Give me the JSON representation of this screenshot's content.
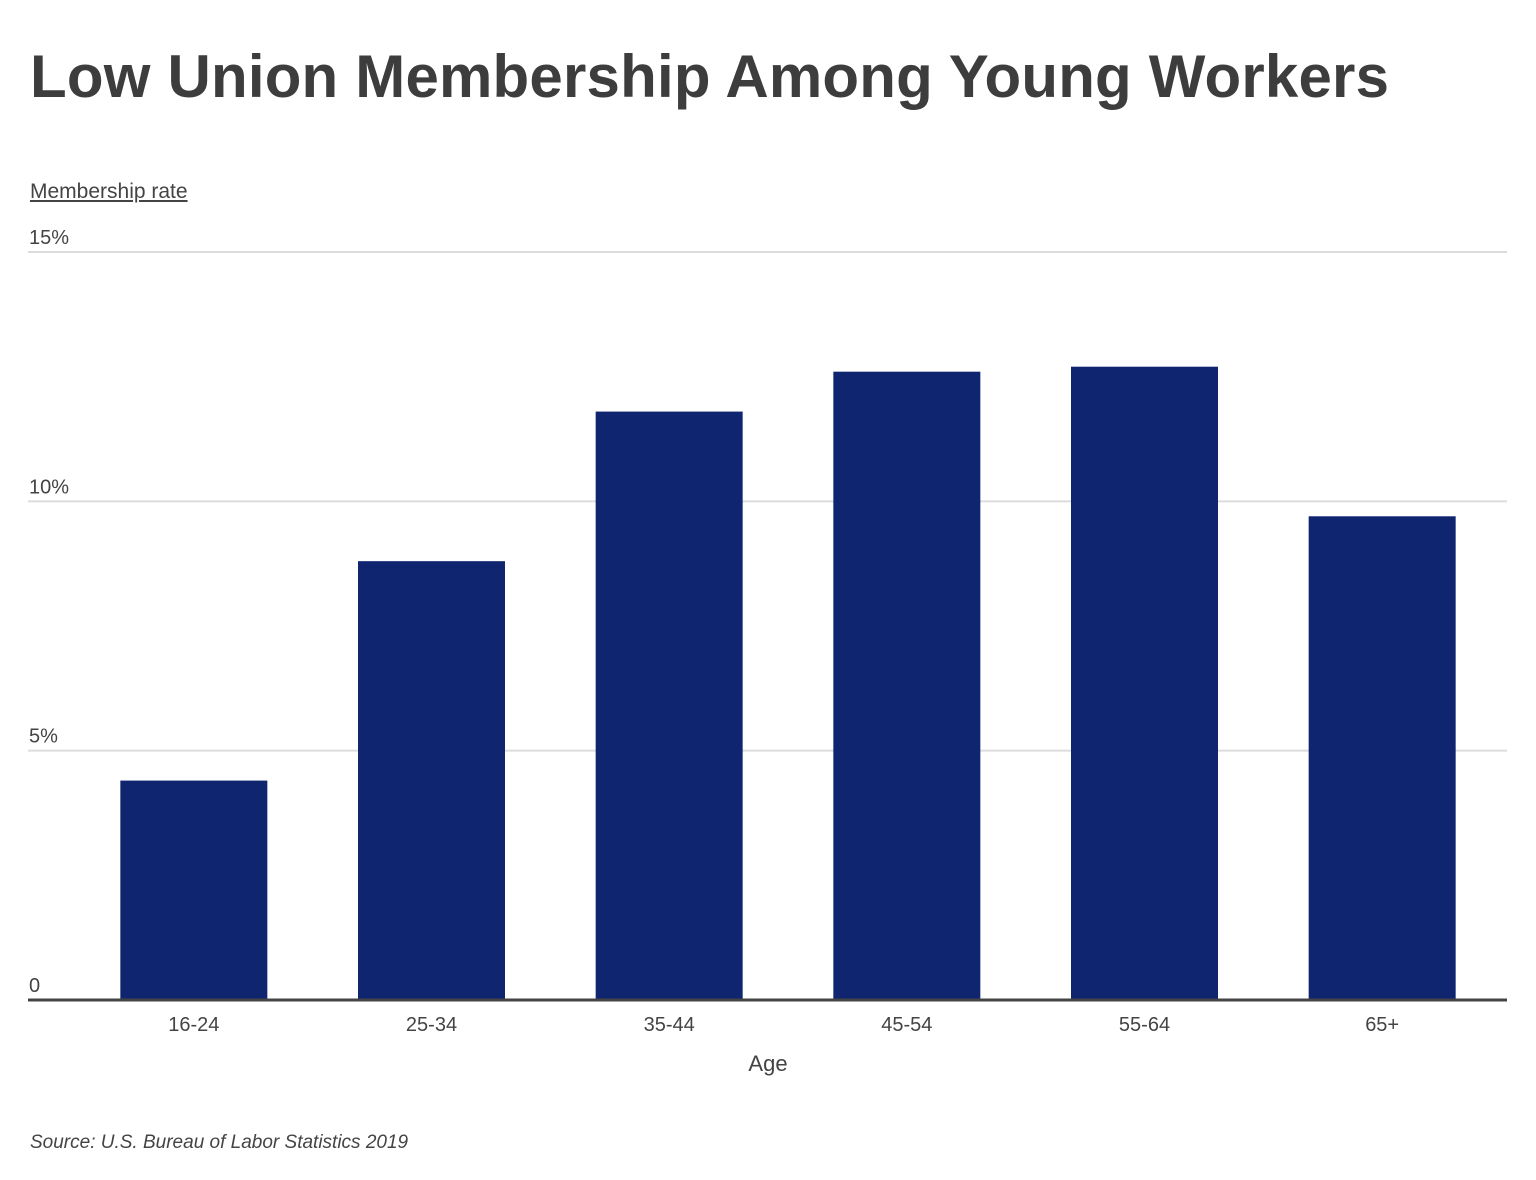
{
  "chart_data": {
    "type": "bar",
    "title": "Low Union Membership Among Young Workers",
    "ylabel": "Membership rate",
    "xlabel": "Age",
    "categories": [
      "16-24",
      "25-34",
      "35-44",
      "45-54",
      "55-64",
      "65+"
    ],
    "values": [
      4.4,
      8.8,
      11.8,
      12.6,
      12.7,
      9.7
    ],
    "ylim": [
      0,
      15
    ],
    "yticks": [
      {
        "value": 0,
        "label": "0"
      },
      {
        "value": 5,
        "label": "5%"
      },
      {
        "value": 10,
        "label": "10%"
      },
      {
        "value": 15,
        "label": "15%"
      }
    ],
    "grid": true,
    "bar_color": "#0f2570",
    "source": "Source: U.S. Bureau of Labor Statistics 2019"
  }
}
